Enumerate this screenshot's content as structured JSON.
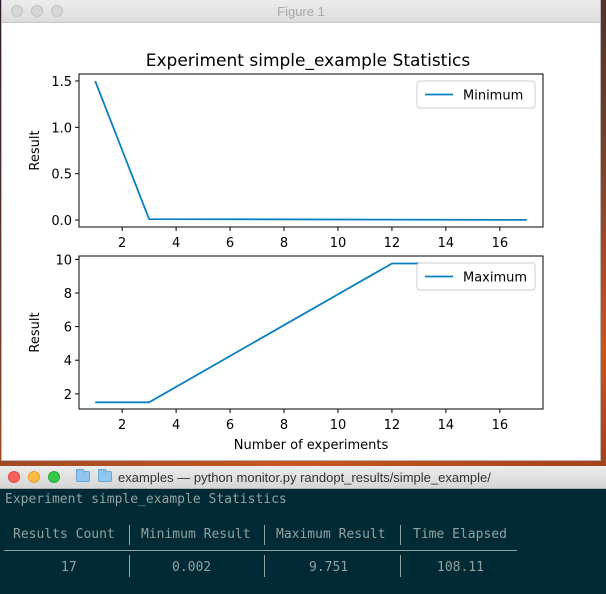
{
  "figure_window": {
    "title": "Figure 1",
    "suptitle": "Experiment simple_example Statistics"
  },
  "chart_data": [
    {
      "type": "line",
      "title": "Experiment simple_example Statistics",
      "ylabel": "Result",
      "xlabel": "",
      "xlim": [
        0.4,
        17.6
      ],
      "ylim": [
        -0.075,
        1.575
      ],
      "xticks": [
        2,
        4,
        6,
        8,
        10,
        12,
        14,
        16
      ],
      "yticks": [
        0.0,
        0.5,
        1.0,
        1.5
      ],
      "ytick_labels": [
        "0.0",
        "0.5",
        "1.0",
        "1.5"
      ],
      "legend_position": "top-right",
      "grid": false,
      "color": "#0a80c0",
      "series": [
        {
          "name": "Minimum",
          "x": [
            1,
            3,
            17
          ],
          "y": [
            1.5,
            0.01,
            0.002
          ]
        }
      ]
    },
    {
      "type": "line",
      "title": "",
      "ylabel": "Result",
      "xlabel": "Number of experiments",
      "xlim": [
        0.4,
        17.6
      ],
      "ylim": [
        1.1,
        10.2
      ],
      "xticks": [
        2,
        4,
        6,
        8,
        10,
        12,
        14,
        16
      ],
      "yticks": [
        2,
        4,
        6,
        8,
        10
      ],
      "ytick_labels": [
        "2",
        "4",
        "6",
        "8",
        "10"
      ],
      "legend_position": "top-right",
      "grid": false,
      "color": "#0a80c0",
      "series": [
        {
          "name": "Maximum",
          "x": [
            1,
            3,
            12,
            17
          ],
          "y": [
            1.5,
            1.5,
            9.751,
            9.751
          ]
        }
      ]
    }
  ],
  "terminal": {
    "title": "examples — python monitor.py randopt_results/simple_example/",
    "heading": "Experiment simple_example Statistics",
    "columns": [
      "Results Count",
      "Minimum Result",
      "Maximum Result",
      "Time Elapsed"
    ],
    "values": [
      "17",
      "0.002",
      "9.751",
      "108.11"
    ],
    "background": "#002b36",
    "text_color": "#93a1a1"
  }
}
